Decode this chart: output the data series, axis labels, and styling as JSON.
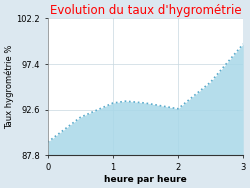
{
  "title": "Evolution du taux d'hygrométrie",
  "title_color": "#ff0000",
  "xlabel": "heure par heure",
  "ylabel": "Taux hygrométrie %",
  "x": [
    0,
    0.5,
    1.0,
    1.2,
    1.5,
    2.0,
    2.5,
    3.0
  ],
  "y": [
    89.2,
    91.8,
    93.3,
    93.5,
    93.3,
    92.7,
    95.5,
    99.5
  ],
  "ylim": [
    87.8,
    102.2
  ],
  "xlim": [
    0,
    3
  ],
  "yticks": [
    87.8,
    92.6,
    97.4,
    102.2
  ],
  "xticks": [
    0,
    1,
    2,
    3
  ],
  "fill_color": "#a8d8e8",
  "fill_alpha": 0.85,
  "line_color": "#5aabcc",
  "line_style": "dotted",
  "line_width": 1.2,
  "bg_color": "#dce8f0",
  "plot_bg_color": "#ffffff",
  "grid_color": "#c8d8e0",
  "title_fontsize": 8.5,
  "label_fontsize": 6.5,
  "tick_fontsize": 6,
  "ylabel_fontsize": 6
}
